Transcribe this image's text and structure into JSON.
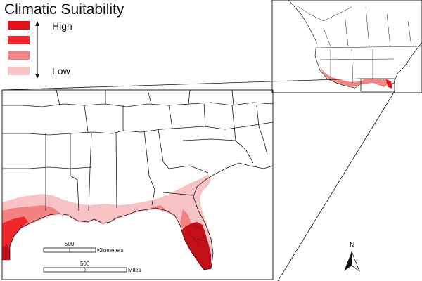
{
  "legend": {
    "title": "Climatic Suitability",
    "high_label": "High",
    "low_label": "Low",
    "classes": [
      {
        "level": "highest",
        "color": "#e3121a"
      },
      {
        "level": "high",
        "color": "#f0262c"
      },
      {
        "level": "medium",
        "color": "#f38383"
      },
      {
        "level": "low",
        "color": "#f8c3c5"
      }
    ]
  },
  "colors": {
    "suitability_darkest": "#c40f18",
    "state_lines": "#1a1a1a",
    "frame": "#222222"
  },
  "scale_bars": {
    "kilometers": {
      "value": "500",
      "unit": "Kilometers"
    },
    "miles": {
      "value": "500",
      "unit": "Miles"
    }
  },
  "north_arrow": {
    "label": "N"
  }
}
